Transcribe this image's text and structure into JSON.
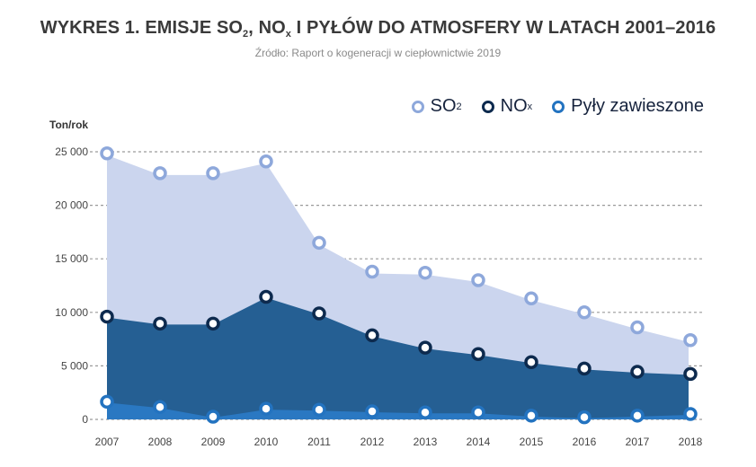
{
  "header": {
    "title_parts": [
      "WYKRES 1. EMISJE SO",
      "2",
      ", NO",
      "x",
      " I PYŁÓW DO ATMOSFERY W LATACH 2001–2016"
    ],
    "subtitle": "Źródło: Raport o kogeneracji w ciepłownictwie 2019"
  },
  "legend": [
    {
      "label": "SO",
      "sub": "2",
      "color": "#8ea8db"
    },
    {
      "label": "NO",
      "sub": "x",
      "color": "#0d2a4e"
    },
    {
      "label": "Pyły zawieszone",
      "sub": "",
      "color": "#2373c0"
    }
  ],
  "chart_data": {
    "type": "area",
    "title": "WYKRES 1. EMISJE SO2, NOx I PYŁÓW DO ATMOSFERY W LATACH 2001–2016",
    "subtitle": "Źródło: Raport o kogeneracji w ciepłownictwie 2019",
    "ylabel": "Ton/rok",
    "xlabel": "",
    "ylim": [
      0,
      25000
    ],
    "yticks": [
      0,
      5000,
      10000,
      15000,
      20000,
      25000
    ],
    "ytick_labels": [
      "0",
      "5 000",
      "10 000",
      "15 000",
      "20 000",
      "25 000"
    ],
    "grid": true,
    "legend_position": "top-right",
    "categories": [
      "2007",
      "2008",
      "2009",
      "2010",
      "2011",
      "2012",
      "2013",
      "2014",
      "2015",
      "2016",
      "2017",
      "2018"
    ],
    "series": [
      {
        "name": "SO2",
        "area_color": "#cbd5ee",
        "marker_color": "#8ea8db",
        "values": [
          24850,
          23000,
          23000,
          24100,
          16500,
          13800,
          13700,
          13000,
          11300,
          10000,
          8600,
          7400
        ]
      },
      {
        "name": "NOx",
        "area_color": "#255f93",
        "marker_color": "#0d2a4e",
        "values": [
          9600,
          8950,
          8950,
          11450,
          9900,
          7850,
          6700,
          6100,
          5350,
          4750,
          4450,
          4250
        ]
      },
      {
        "name": "Pyły zawieszone",
        "area_color": "#2a78c2",
        "marker_color": "#2373c0",
        "values": [
          1650,
          1150,
          250,
          1000,
          900,
          750,
          650,
          650,
          350,
          200,
          350,
          500
        ]
      }
    ]
  }
}
